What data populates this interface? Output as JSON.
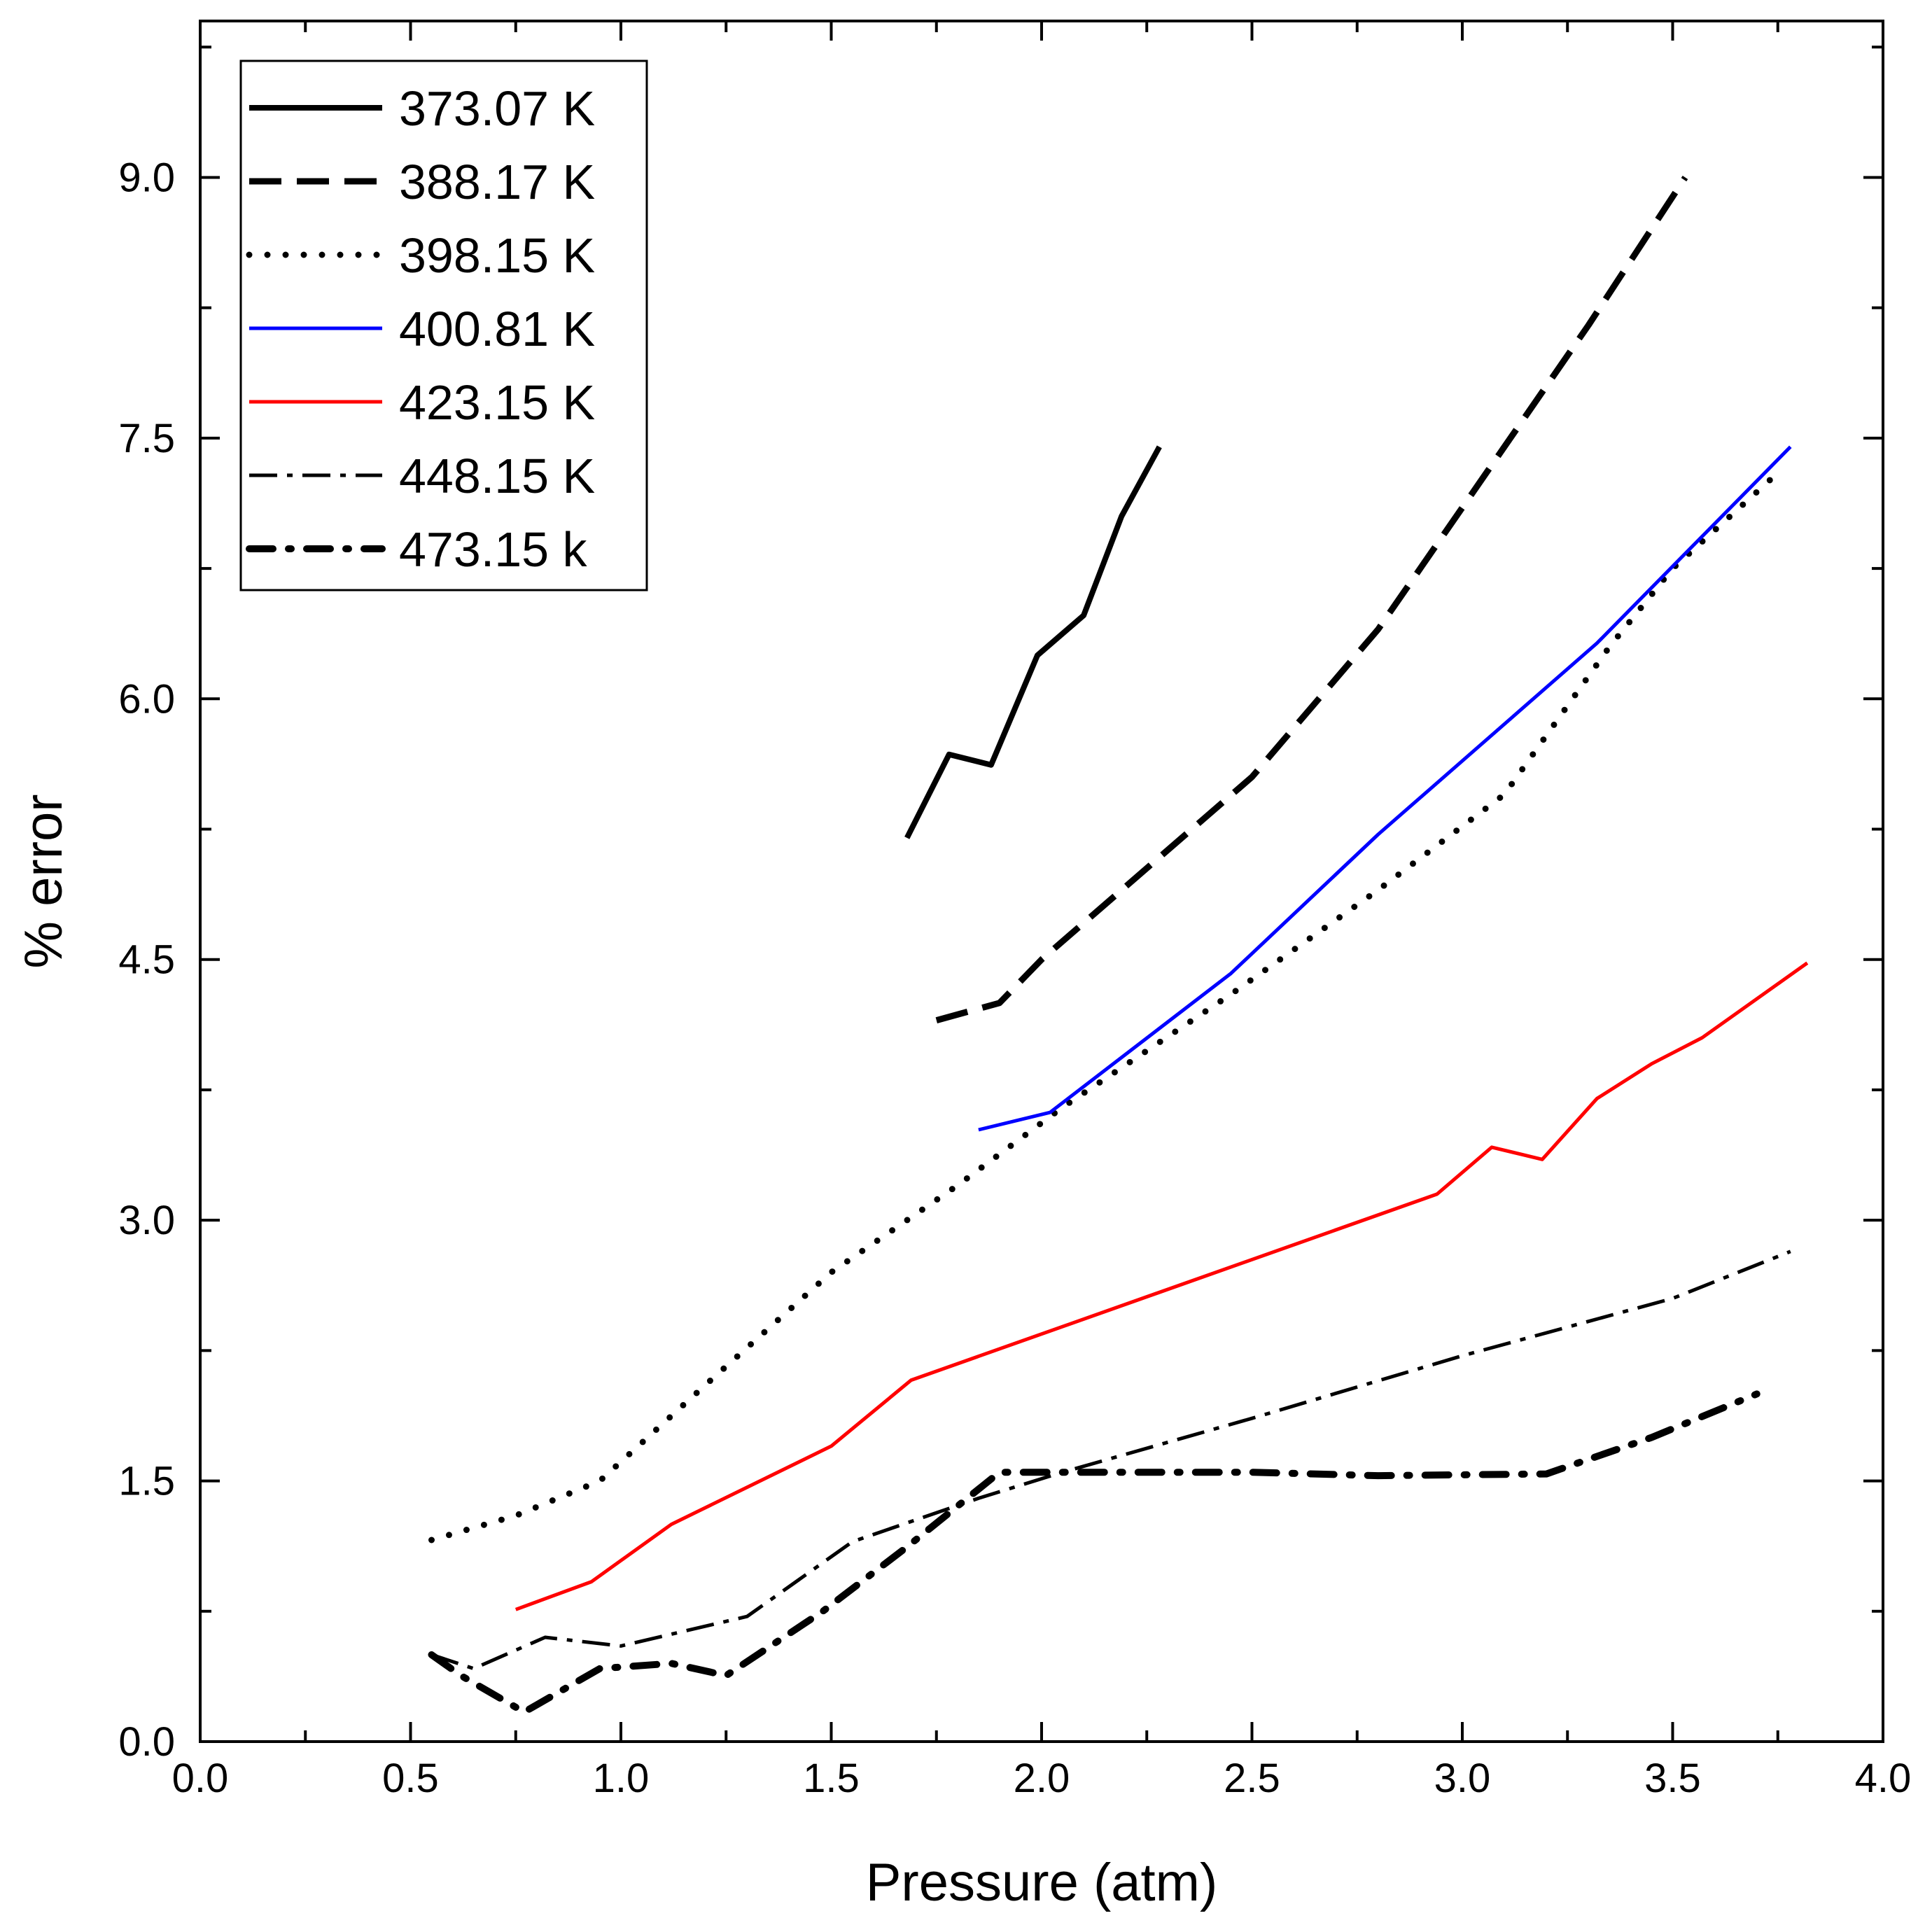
{
  "chart_data": {
    "type": "line",
    "title": "",
    "xlabel": "Pressure (atm)",
    "ylabel": "% error",
    "xlim": [
      0.0,
      4.0
    ],
    "ylim": [
      0.0,
      9.9
    ],
    "xticks": [
      "0.0",
      "0.5",
      "1.0",
      "1.5",
      "2.0",
      "2.5",
      "3.0",
      "3.5",
      "4.0"
    ],
    "yticks": [
      "0.0",
      "1.5",
      "3.0",
      "4.5",
      "6.0",
      "7.5",
      "9.0"
    ],
    "legend_position": "top-left",
    "series": [
      {
        "name": "373.07 K",
        "color": "#000000",
        "style": "solid-thick",
        "x": [
          1.68,
          1.78,
          1.88,
          1.99,
          2.1,
          2.19,
          2.28
        ],
        "y": [
          5.2,
          5.68,
          5.62,
          6.25,
          6.48,
          7.05,
          7.45
        ]
      },
      {
        "name": "388.17 K",
        "color": "#000000",
        "style": "dash",
        "x": [
          1.75,
          1.9,
          2.0,
          2.2,
          2.5,
          2.8,
          3.0,
          3.3,
          3.53
        ],
        "y": [
          4.15,
          4.25,
          4.5,
          4.92,
          5.55,
          6.4,
          7.1,
          8.15,
          9.0
        ]
      },
      {
        "name": "398.15 K",
        "color": "#000000",
        "style": "dot",
        "x": [
          0.55,
          0.75,
          0.95,
          1.2,
          1.5,
          1.8,
          2.05,
          2.45,
          2.8,
          3.1,
          3.35,
          3.5,
          3.75
        ],
        "y": [
          1.16,
          1.3,
          1.5,
          2.05,
          2.7,
          3.2,
          3.65,
          4.3,
          4.9,
          5.45,
          6.3,
          6.75,
          7.3
        ]
      },
      {
        "name": "400.81 K",
        "color": "#0000ff",
        "style": "solid",
        "x": [
          1.85,
          2.02,
          2.45,
          2.8,
          3.32,
          3.78
        ],
        "y": [
          3.52,
          3.62,
          4.42,
          5.22,
          6.32,
          7.45
        ]
      },
      {
        "name": "423.15 K",
        "color": "#ff0000",
        "style": "solid",
        "x": [
          0.75,
          0.93,
          1.12,
          1.5,
          1.69,
          2.94,
          3.07,
          3.19,
          3.32,
          3.45,
          3.57,
          3.82
        ],
        "y": [
          0.76,
          0.92,
          1.25,
          1.7,
          2.08,
          3.15,
          3.42,
          3.35,
          3.7,
          3.9,
          4.05,
          4.48
        ]
      },
      {
        "name": "448.15 K",
        "color": "#000000",
        "style": "dashdot",
        "x": [
          0.55,
          0.65,
          0.82,
          1.0,
          1.3,
          1.55,
          1.85,
          2.05,
          2.5,
          3.0,
          3.5,
          3.78
        ],
        "y": [
          0.5,
          0.42,
          0.6,
          0.55,
          0.72,
          1.15,
          1.4,
          1.55,
          1.86,
          2.22,
          2.55,
          2.82
        ]
      },
      {
        "name": "473.15 k",
        "color": "#000000",
        "style": "dashdot-thick",
        "x": [
          0.55,
          0.62,
          0.77,
          0.95,
          1.12,
          1.25,
          1.48,
          1.68,
          1.9,
          2.05,
          2.5,
          2.8,
          3.2,
          3.45,
          3.7
        ],
        "y": [
          0.5,
          0.38,
          0.17,
          0.42,
          0.45,
          0.38,
          0.75,
          1.12,
          1.55,
          1.55,
          1.55,
          1.53,
          1.54,
          1.75,
          2.0
        ]
      }
    ]
  }
}
